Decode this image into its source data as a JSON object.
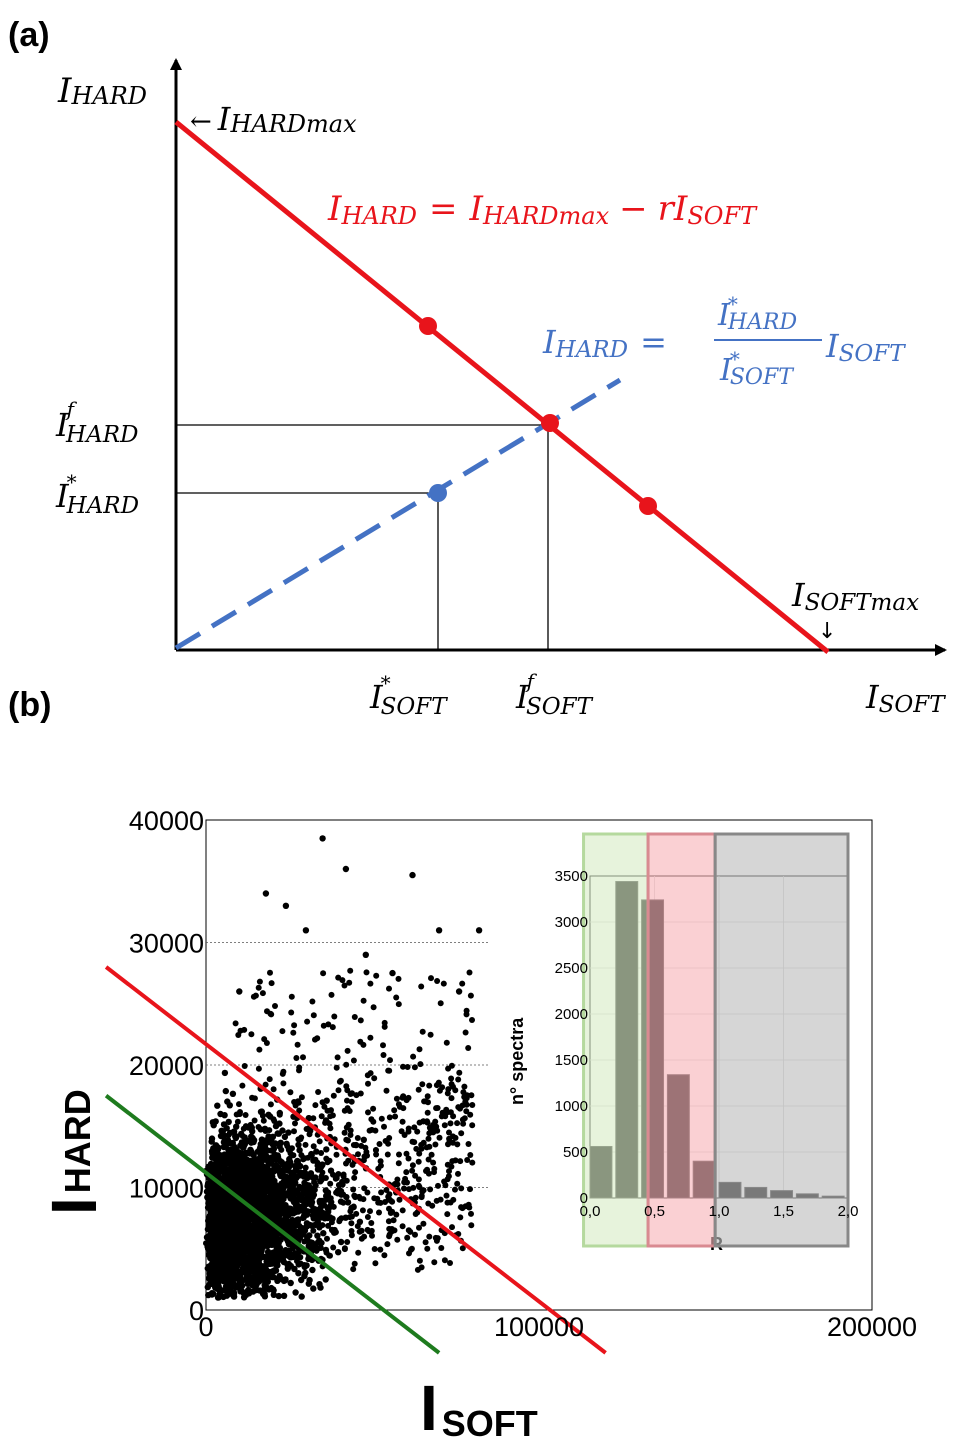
{
  "panels": {
    "a": {
      "label": "(a)"
    },
    "b": {
      "label": "(b)"
    }
  },
  "colors": {
    "red_line": "#e8141b",
    "blue_line": "#4472c4",
    "green_line": "#1e7b1e",
    "inset_green": "#d9ecc6",
    "inset_red": "#f7b3b8",
    "inset_gray": "#bdbdbd",
    "points": "#000000"
  },
  "diagram_a": {
    "y_axis": {
      "main": "I",
      "sub": "HARD"
    },
    "x_axis": {
      "main": "I",
      "sub": "SOFT"
    },
    "y_max_label": {
      "arrow": "←",
      "main": "I",
      "sub": "HARDmax"
    },
    "x_max_label": {
      "main": "I",
      "sub": "SOFTmax",
      "arrow": "↓"
    },
    "red_equation": {
      "lhs_main": "I",
      "lhs_sub": "HARD",
      "eq": "=",
      "rhs1_main": "I",
      "rhs1_sub": "HARDmax",
      "minus": "−",
      "rhs2_main": "rI",
      "rhs2_sub": "SOFT"
    },
    "blue_equation": {
      "lhs_main": "I",
      "lhs_sub": "HARD",
      "eq": "=",
      "num_main": "I",
      "num_sub": "HARD",
      "num_sup": "*",
      "den_main": "I",
      "den_sub": "SOFT",
      "den_sup": "*",
      "rhs_main": "I",
      "rhs_sub": "SOFT"
    },
    "tick_y_f": {
      "main": "I",
      "sub": "HARD",
      "sup": "f"
    },
    "tick_y_star": {
      "main": "I",
      "sub": "HARD",
      "sup": "*"
    },
    "tick_x_star": {
      "main": "I",
      "sub": "SOFT",
      "sup": "*"
    },
    "tick_x_f": {
      "main": "I",
      "sub": "SOFT",
      "sup": "f"
    }
  },
  "chart_data": [
    {
      "type": "scatter",
      "xlabel": {
        "main": "I",
        "sub": "SOFT"
      },
      "ylabel": {
        "main": "I",
        "sub": "HARD"
      },
      "xlim": [
        0,
        200000
      ],
      "ylim": [
        0,
        40000
      ],
      "x_ticks": [
        "0",
        "100000",
        "200000"
      ],
      "y_ticks": [
        "0",
        "10000",
        "20000",
        "30000",
        "40000"
      ],
      "x_tick_values": [
        0,
        100000,
        200000
      ],
      "y_tick_values": [
        0,
        10000,
        20000,
        30000,
        40000
      ],
      "grid": "horizontal dotted",
      "lines": [
        {
          "color": "red",
          "x1": -30000,
          "y1": 28000,
          "x2": 120000,
          "y2": -3500
        },
        {
          "color": "green",
          "x1": -30000,
          "y1": 17500,
          "x2": 70000,
          "y2": -3500
        }
      ],
      "point_cloud": {
        "dense_region": {
          "x": [
            0,
            80000
          ],
          "y": [
            1000,
            20000
          ]
        },
        "sparse_outliers": [
          [
            35000,
            38500
          ],
          [
            42000,
            36000
          ],
          [
            62000,
            35500
          ],
          [
            18000,
            34000
          ],
          [
            24000,
            33000
          ],
          [
            30000,
            31000
          ],
          [
            70000,
            31000
          ],
          [
            82000,
            31000
          ],
          [
            48000,
            29000
          ],
          [
            56000,
            27500
          ],
          [
            76000,
            26000
          ],
          [
            10000,
            26000
          ]
        ]
      }
    },
    {
      "type": "bar",
      "ylabel": "n° spectra",
      "xlabel": "R",
      "x_ticks": [
        "0,0",
        "0,5",
        "1,0",
        "1,5",
        "2,0"
      ],
      "x_tick_values": [
        0,
        0.5,
        1.0,
        1.5,
        2.0
      ],
      "y_ticks": [
        "0",
        "500",
        "1000",
        "1500",
        "2000",
        "2500",
        "3000",
        "3500"
      ],
      "y_tick_values": [
        0,
        500,
        1000,
        1500,
        2000,
        2500,
        3000,
        3500
      ],
      "xlim": [
        0,
        2.0
      ],
      "ylim": [
        0,
        3500
      ],
      "bar_width": 0.17,
      "bins": [
        0.0,
        0.2,
        0.4,
        0.6,
        0.8,
        1.0,
        1.2,
        1.4,
        1.6,
        1.8
      ],
      "values": [
        560,
        3440,
        3240,
        1340,
        400,
        170,
        115,
        80,
        45,
        20
      ],
      "regions": [
        {
          "color": "green",
          "from": -0.05,
          "to": 0.45
        },
        {
          "color": "red",
          "from": 0.45,
          "to": 0.97
        },
        {
          "color": "gray",
          "from": 0.97,
          "to": 2.0
        }
      ]
    }
  ]
}
